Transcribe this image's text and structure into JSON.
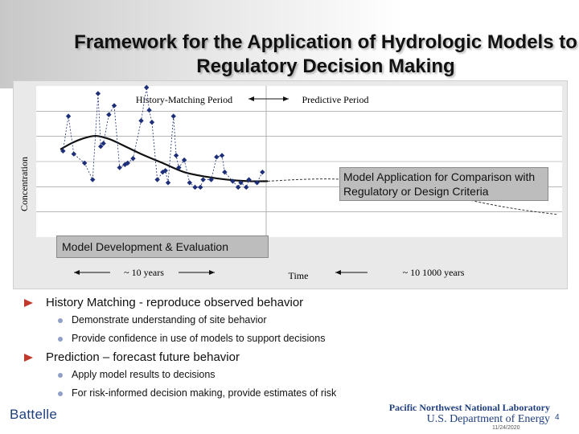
{
  "slide": {
    "title": "Framework for the Application of Hydrologic Models to Regulatory Decision Making",
    "page_number": "4",
    "date": "11/24/2020"
  },
  "footer": {
    "left_logo": "Battelle",
    "right_logo_line1": "Pacific Northwest National Laboratory",
    "right_logo_line2": "U.S. Department of Energy"
  },
  "bullets": [
    {
      "text": "History Matching - reproduce observed behavior",
      "subs": [
        "Demonstrate understanding of site behavior",
        "Provide confidence in use of models to support decisions"
      ]
    },
    {
      "text": "Prediction – forecast future behavior",
      "subs": [
        "Apply model results to decisions",
        "For risk-informed decision making, provide estimates of risk"
      ]
    }
  ],
  "chart_data": {
    "type": "scatter",
    "ylabel": "Concentration",
    "xlabel": "Time",
    "period_labels": [
      "History-Matching Period",
      "Predictive Period"
    ],
    "time_labels": [
      "~ 10 years",
      "~ 10   1000 years"
    ],
    "boxes": {
      "comparison": "Model Application for Comparison with Regulatory or Design Criteria",
      "development": "Model Development & Evaluation"
    },
    "colors": {
      "observed": "#1e2f7a",
      "model": "#111111",
      "prediction": "#333333"
    },
    "x_range": [
      0,
      100
    ],
    "y_range": [
      0,
      100
    ],
    "observed": [
      {
        "x": 1,
        "y": 57
      },
      {
        "x": 3,
        "y": 80
      },
      {
        "x": 5,
        "y": 55
      },
      {
        "x": 9,
        "y": 49
      },
      {
        "x": 12,
        "y": 38
      },
      {
        "x": 14,
        "y": 95
      },
      {
        "x": 15,
        "y": 60
      },
      {
        "x": 16,
        "y": 62
      },
      {
        "x": 18,
        "y": 81
      },
      {
        "x": 20,
        "y": 87
      },
      {
        "x": 22,
        "y": 46
      },
      {
        "x": 24,
        "y": 48
      },
      {
        "x": 25,
        "y": 49
      },
      {
        "x": 27,
        "y": 52
      },
      {
        "x": 30,
        "y": 77
      },
      {
        "x": 32,
        "y": 99
      },
      {
        "x": 33,
        "y": 84
      },
      {
        "x": 34,
        "y": 76
      },
      {
        "x": 36,
        "y": 38
      },
      {
        "x": 38,
        "y": 43
      },
      {
        "x": 39,
        "y": 44
      },
      {
        "x": 40,
        "y": 36
      },
      {
        "x": 42,
        "y": 80
      },
      {
        "x": 43,
        "y": 54
      },
      {
        "x": 44,
        "y": 46
      },
      {
        "x": 46,
        "y": 51
      },
      {
        "x": 48,
        "y": 36
      },
      {
        "x": 50,
        "y": 33
      },
      {
        "x": 52,
        "y": 33
      },
      {
        "x": 53,
        "y": 38
      },
      {
        "x": 56,
        "y": 38
      },
      {
        "x": 58,
        "y": 53
      },
      {
        "x": 60,
        "y": 54
      },
      {
        "x": 61,
        "y": 43
      },
      {
        "x": 64,
        "y": 37
      },
      {
        "x": 66,
        "y": 33
      },
      {
        "x": 67,
        "y": 36
      },
      {
        "x": 69,
        "y": 33
      },
      {
        "x": 70,
        "y": 38
      },
      {
        "x": 73,
        "y": 36
      },
      {
        "x": 75,
        "y": 43
      }
    ],
    "model_curve": [
      {
        "x": 0,
        "y": 58
      },
      {
        "x": 4,
        "y": 62
      },
      {
        "x": 8,
        "y": 65
      },
      {
        "x": 13,
        "y": 67
      },
      {
        "x": 18,
        "y": 65
      },
      {
        "x": 23,
        "y": 61
      },
      {
        "x": 30,
        "y": 55
      },
      {
        "x": 38,
        "y": 49
      },
      {
        "x": 46,
        "y": 43
      },
      {
        "x": 54,
        "y": 40
      },
      {
        "x": 62,
        "y": 38
      },
      {
        "x": 70,
        "y": 37
      },
      {
        "x": 77,
        "y": 37
      }
    ],
    "prediction_curve": [
      {
        "x": 77,
        "y": 37
      },
      {
        "x": 85,
        "y": 38
      },
      {
        "x": 93,
        "y": 38.5
      },
      {
        "x": 100,
        "y": 38
      },
      {
        "x": 110,
        "y": 36
      },
      {
        "x": 120,
        "y": 32
      },
      {
        "x": 130,
        "y": 27
      },
      {
        "x": 140,
        "y": 22
      },
      {
        "x": 150,
        "y": 18
      },
      {
        "x": 160,
        "y": 15
      }
    ]
  }
}
